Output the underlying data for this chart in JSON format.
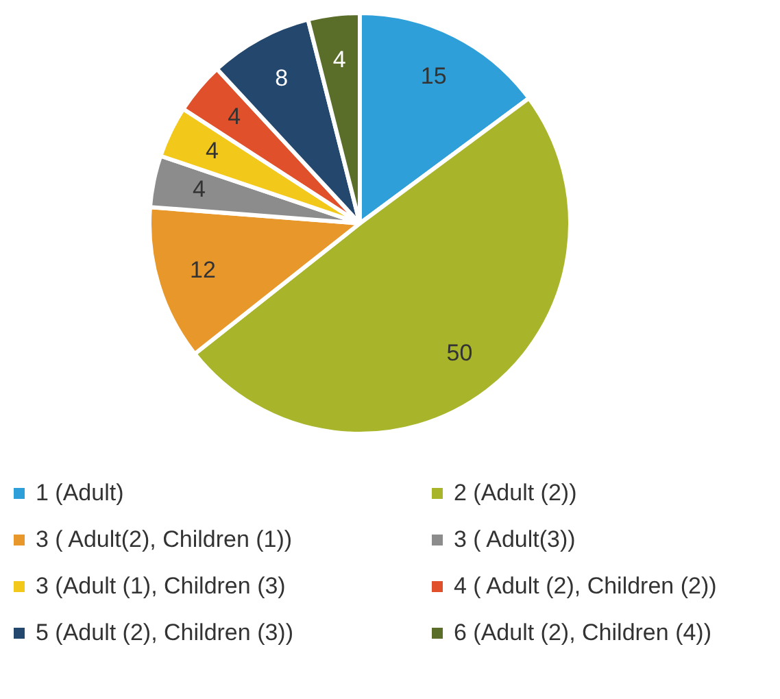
{
  "chart_data": {
    "type": "pie",
    "categories": [
      "1 (Adult)",
      "2 (Adult (2))",
      "3 ( Adult(2), Children (1))",
      "3 ( Adult(3))",
      "3 (Adult (1), Children (3)",
      "4 ( Adult (2), Children (2))",
      "5 (Adult (2), Children (3))",
      "6 (Adult (2), Children (4))"
    ],
    "values": [
      15,
      50,
      12,
      4,
      4,
      4,
      8,
      4
    ],
    "colors": [
      "#2e9fd8",
      "#a8b52a",
      "#e8972a",
      "#8c8c8c",
      "#f2c81a",
      "#e0502a",
      "#24476e",
      "#5a6e2a"
    ],
    "data_labels": true,
    "legend": "bottom"
  }
}
